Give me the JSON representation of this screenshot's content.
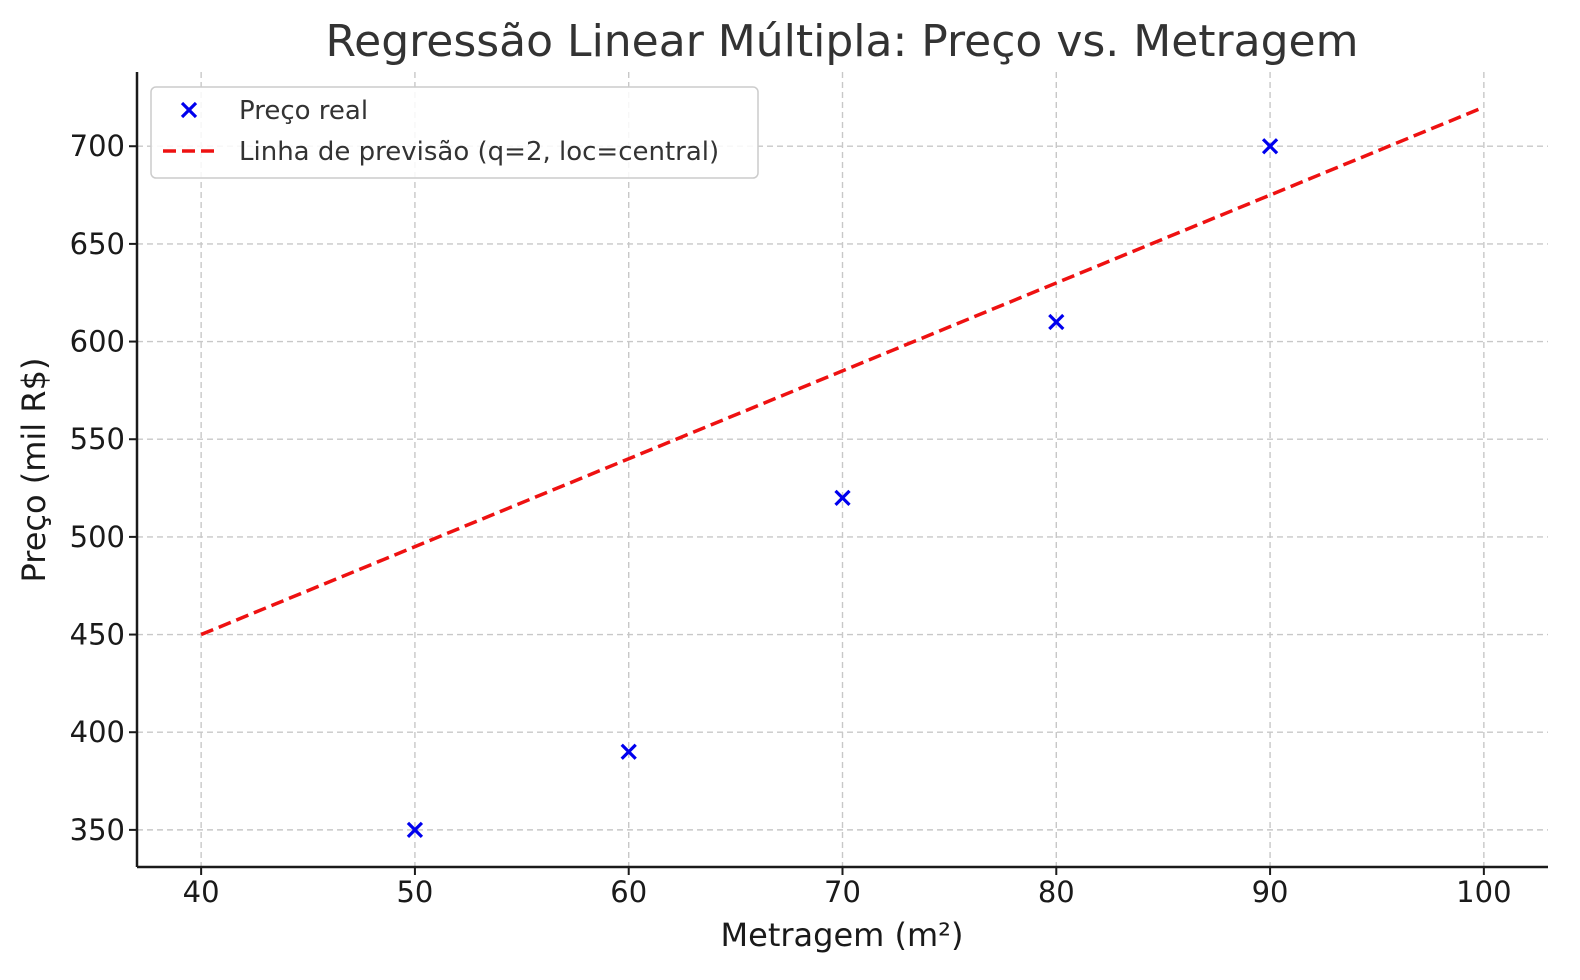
{
  "chart_data": {
    "type": "scatter",
    "title": "Regressão Linear Múltipla: Preço vs. Metragem",
    "xlabel": "Metragem (m²)",
    "ylabel": "Preço (mil R$)",
    "xlim": [
      37,
      103
    ],
    "ylim": [
      331,
      738
    ],
    "xticks": [
      40,
      50,
      60,
      70,
      80,
      90,
      100
    ],
    "yticks": [
      350,
      400,
      450,
      500,
      550,
      600,
      650,
      700
    ],
    "grid": true,
    "legend_position": "top-left",
    "series": [
      {
        "name": "Preço real",
        "kind": "scatter",
        "marker": "x",
        "color": "#0000ee",
        "x": [
          50,
          60,
          70,
          80,
          90
        ],
        "y": [
          350,
          390,
          520,
          610,
          700
        ]
      },
      {
        "name": "Linha de previsão (q=2, loc=central)",
        "kind": "line",
        "style": "dashed",
        "color": "#ee1111",
        "x": [
          40,
          100
        ],
        "y": [
          450,
          720
        ]
      }
    ]
  }
}
